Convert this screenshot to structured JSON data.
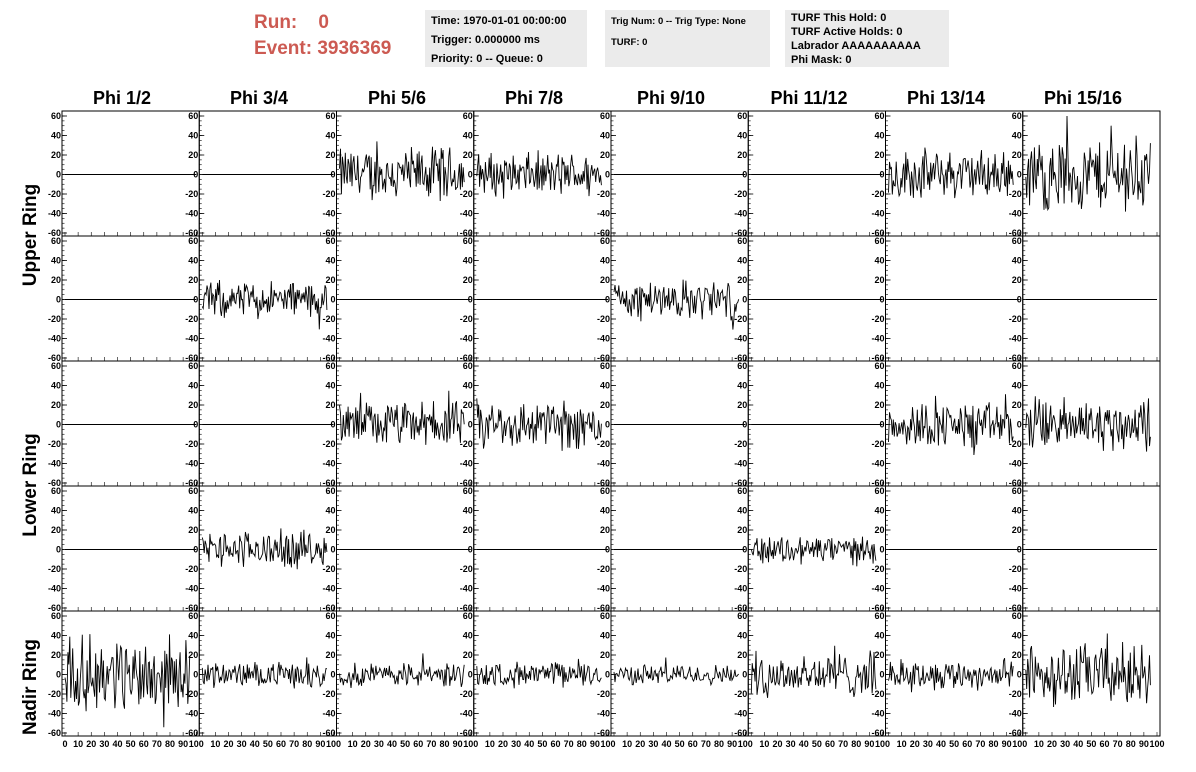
{
  "header": {
    "run_label": "Run:",
    "run_value": "0",
    "event_label": "Event:",
    "event_value": "3936369"
  },
  "info_box_1": {
    "time": "Time: 1970-01-01 00:00:00",
    "trigger": "Trigger: 0.000000 ms",
    "priority": "Priority: 0 -- Queue: 0"
  },
  "info_box_2": {
    "trig": "Trig Num: 0 -- Trig Type: None",
    "turf": "TURF: 0"
  },
  "info_box_3": {
    "hold": "TURF This Hold: 0",
    "active": "TURF Active Holds: 0",
    "labrador": "Labrador AAAAAAAAAA",
    "phimask": "Phi Mask: 0"
  },
  "phi_headers": [
    "Phi 1/2",
    "Phi 3/4",
    "Phi 5/6",
    "Phi 7/8",
    "Phi 9/10",
    "Phi 11/12",
    "Phi 13/14",
    "Phi 15/16"
  ],
  "ring_labels": {
    "upper": "Upper Ring",
    "lower": "Lower Ring",
    "nadir": "Nadir Ring"
  },
  "axes": {
    "y_ticks": [
      "60",
      "40",
      "20",
      "0",
      "-20",
      "-40",
      "-60"
    ],
    "x_ticks": [
      "0",
      "10",
      "20",
      "30",
      "40",
      "50",
      "60",
      "70",
      "80",
      "90",
      "100"
    ]
  },
  "colors": {
    "header_red": "#cc5a52",
    "info_bg": "#ebebeb",
    "trace": "#000000"
  },
  "chart_data": {
    "type": "line",
    "ylim": [
      -60,
      60
    ],
    "xlim": [
      0,
      100
    ],
    "grid": false,
    "rows": 5,
    "cols": 8,
    "amplitudes": [
      [
        0,
        0,
        22,
        18,
        0,
        0,
        20,
        30
      ],
      [
        0,
        15,
        0,
        0,
        16,
        0,
        0,
        0
      ],
      [
        0,
        0,
        18,
        20,
        0,
        0,
        18,
        22
      ],
      [
        0,
        15,
        0,
        0,
        0,
        12,
        0,
        0
      ],
      [
        30,
        10,
        10,
        10,
        8,
        18,
        12,
        25
      ]
    ]
  }
}
